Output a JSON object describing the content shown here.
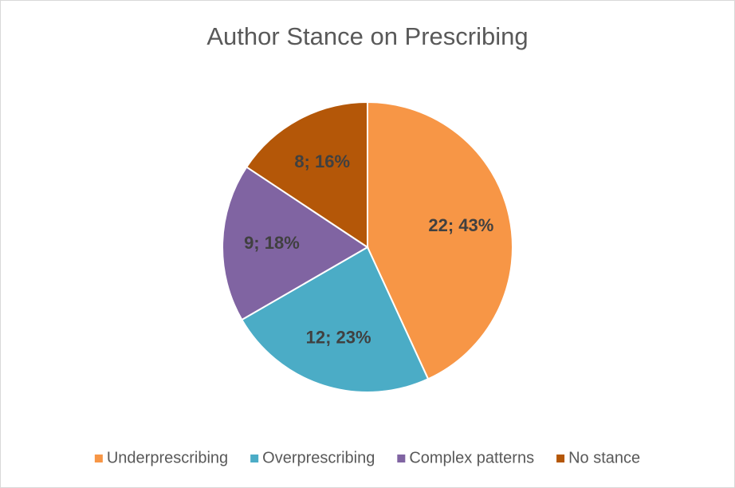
{
  "chart_data": {
    "type": "pie",
    "title": "Author Stance on Prescribing",
    "categories": [
      "Underprescribing",
      "Overprescribing",
      "Complex patterns",
      "No stance"
    ],
    "values": [
      22,
      12,
      9,
      8
    ],
    "value_labels": [
      "22; 43%",
      "12; 23%",
      "9; 18%",
      "8; 16%"
    ],
    "colors": [
      "#f79646",
      "#4bacc6",
      "#8064a2",
      "#b45708"
    ],
    "legend": "bottom"
  }
}
